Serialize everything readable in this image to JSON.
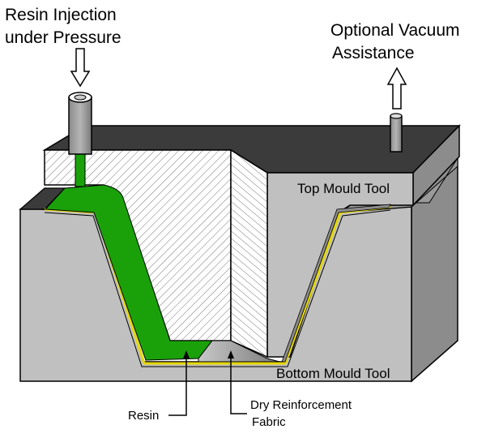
{
  "labels": {
    "resin_injection_line1": "Resin Injection",
    "resin_injection_line2": "under Pressure",
    "vacuum_line1": "Optional Vacuum",
    "vacuum_line2": "Assistance",
    "top_tool": "Top Mould Tool",
    "bottom_tool": "Bottom Mould Tool",
    "resin": "Resin",
    "fabric_line1": "Dry Reinforcement",
    "fabric_line2": "Fabric"
  },
  "colors": {
    "resin": "#1aa10a",
    "mould_face": "#c0c0c0",
    "mould_side": "#8c8c8c",
    "mould_top": "#3b3b3b",
    "hatch_bg": "#ffffff",
    "fabric": "#9a9a9a",
    "gelcoat": "#e6d800"
  },
  "icons": {
    "inlet_arrow": "arrow-down-icon",
    "vacuum_arrow": "arrow-up-icon",
    "inlet_port": "pipe-icon",
    "vacuum_port": "pipe-icon"
  }
}
